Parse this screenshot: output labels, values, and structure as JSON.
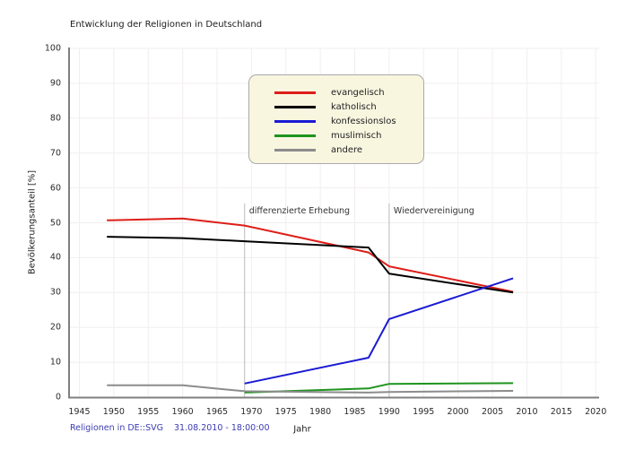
{
  "footer": {
    "source": "Religionen in DE::SVG",
    "timestamp": "31.08.2010 - 18:00:00"
  },
  "chart_data": {
    "type": "line",
    "title": "Entwicklung der Religionen in Deutschland",
    "xlabel": "Jahr",
    "ylabel": "Bevölkerungsanteil [%]",
    "xlim": [
      1943.5,
      2020.5
    ],
    "ylim": [
      0,
      100
    ],
    "x_ticks": [
      1945,
      1950,
      1955,
      1960,
      1965,
      1970,
      1975,
      1980,
      1985,
      1990,
      1995,
      2000,
      2005,
      2010,
      2015,
      2020
    ],
    "y_ticks": [
      0,
      10,
      20,
      30,
      40,
      50,
      60,
      70,
      80,
      90,
      100
    ],
    "grid": true,
    "legend_position": "upper center",
    "series": [
      {
        "name": "evangelisch",
        "color": "#dd1e19",
        "points": [
          [
            1949,
            50.7
          ],
          [
            1960,
            51.2
          ],
          [
            1969,
            49.2
          ],
          [
            1987,
            41.5
          ],
          [
            1990,
            37.5
          ],
          [
            2008,
            30.2
          ]
        ]
      },
      {
        "name": "katholisch",
        "color": "#000000",
        "points": [
          [
            1949,
            46.0
          ],
          [
            1960,
            45.6
          ],
          [
            1969,
            44.7
          ],
          [
            1987,
            42.9
          ],
          [
            1990,
            35.4
          ],
          [
            2008,
            30.0
          ]
        ]
      },
      {
        "name": "konfessionslos",
        "color": "#1a1ad4",
        "points": [
          [
            1969,
            3.9
          ],
          [
            1987,
            11.3
          ],
          [
            1990,
            22.4
          ],
          [
            2008,
            34.1
          ]
        ]
      },
      {
        "name": "muslimisch",
        "color": "#1e941e",
        "points": [
          [
            1969,
            1.3
          ],
          [
            1987,
            2.5
          ],
          [
            1990,
            3.8
          ],
          [
            2008,
            4.0
          ]
        ]
      },
      {
        "name": "andere",
        "color": "#8c8c8c",
        "points": [
          [
            1949,
            3.4
          ],
          [
            1960,
            3.4
          ],
          [
            1969,
            1.7
          ],
          [
            1987,
            1.3
          ],
          [
            1990,
            1.5
          ],
          [
            2008,
            1.8
          ]
        ]
      }
    ],
    "annotations": [
      {
        "label": "differenzierte Erhebung",
        "year": 1969
      },
      {
        "label": "Wiedervereinigung",
        "year": 1990
      }
    ],
    "colors": {
      "grid": "#f2eeee",
      "axis_y": "#555555",
      "axis_x": "#808080",
      "annotation_line": "#bbbbbb",
      "legend_bg": "#f9f6e0",
      "legend_border": "#a9a9a9",
      "footer_text": "#3c3cb4"
    }
  }
}
